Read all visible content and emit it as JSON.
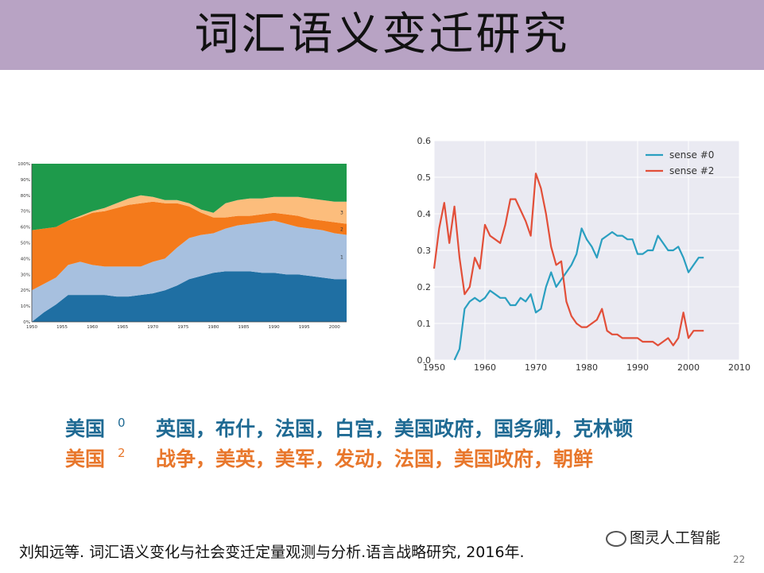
{
  "title": "词汇语义变迁研究",
  "chart_data": [
    {
      "type": "area",
      "stacked": true,
      "x": [
        1950,
        1952,
        1954,
        1956,
        1958,
        1960,
        1962,
        1964,
        1966,
        1968,
        1970,
        1972,
        1974,
        1976,
        1978,
        1980,
        1982,
        1984,
        1986,
        1988,
        1990,
        1992,
        1994,
        1996,
        1998,
        2000,
        2002
      ],
      "series": [
        {
          "name": "",
          "color": "#1f6fa3",
          "values": [
            0,
            0.06,
            0.11,
            0.17,
            0.17,
            0.17,
            0.17,
            0.16,
            0.16,
            0.17,
            0.18,
            0.2,
            0.23,
            0.27,
            0.29,
            0.31,
            0.32,
            0.32,
            0.32,
            0.31,
            0.31,
            0.3,
            0.3,
            0.29,
            0.28,
            0.27,
            0.27
          ]
        },
        {
          "name": "",
          "color": "#a7c0df",
          "values": [
            0.2,
            0.18,
            0.17,
            0.19,
            0.21,
            0.19,
            0.18,
            0.19,
            0.19,
            0.18,
            0.2,
            0.2,
            0.24,
            0.26,
            0.26,
            0.25,
            0.27,
            0.29,
            0.3,
            0.32,
            0.33,
            0.32,
            0.3,
            0.3,
            0.3,
            0.29,
            0.28
          ]
        },
        {
          "name": "",
          "color": "#f47a1b",
          "values": [
            0.38,
            0.35,
            0.32,
            0.28,
            0.28,
            0.33,
            0.35,
            0.37,
            0.39,
            0.4,
            0.38,
            0.35,
            0.28,
            0.2,
            0.14,
            0.1,
            0.07,
            0.06,
            0.05,
            0.05,
            0.05,
            0.06,
            0.07,
            0.06,
            0.06,
            0.07,
            0.07
          ]
        },
        {
          "name": "",
          "color": "#fcbd7c",
          "values": [
            0,
            0,
            0,
            0,
            0.01,
            0.01,
            0.02,
            0.03,
            0.04,
            0.05,
            0.03,
            0.02,
            0.02,
            0.02,
            0.02,
            0.03,
            0.09,
            0.1,
            0.11,
            0.1,
            0.1,
            0.11,
            0.12,
            0.13,
            0.13,
            0.13,
            0.14
          ]
        },
        {
          "name": "",
          "color": "#1e9a4b",
          "values": [
            0.42,
            0.41,
            0.4,
            0.36,
            0.33,
            0.3,
            0.28,
            0.25,
            0.22,
            0.2,
            0.21,
            0.23,
            0.23,
            0.25,
            0.29,
            0.31,
            0.25,
            0.23,
            0.22,
            0.22,
            0.21,
            0.21,
            0.21,
            0.22,
            0.23,
            0.24,
            0.24
          ]
        }
      ],
      "area_labels": [
        "1",
        "2",
        "3"
      ],
      "xlim": [
        1950,
        2002
      ],
      "ylim": [
        0,
        1
      ],
      "x_ticks": [
        "1950",
        "1955",
        "1960",
        "1965",
        "1970",
        "1975",
        "1980",
        "1985",
        "1990",
        "1995",
        "2000"
      ],
      "y_ticks": [
        "0%",
        "10%",
        "20%",
        "30%",
        "40%",
        "50%",
        "60%",
        "70%",
        "80%",
        "90%",
        "100%"
      ]
    },
    {
      "type": "line",
      "series": [
        {
          "name": "sense #0",
          "color": "#2a9fc0",
          "x": [
            1954,
            1955,
            1956,
            1957,
            1958,
            1959,
            1960,
            1961,
            1962,
            1963,
            1964,
            1965,
            1966,
            1967,
            1968,
            1969,
            1970,
            1971,
            1972,
            1973,
            1974,
            1975,
            1976,
            1977,
            1978,
            1979,
            1980,
            1981,
            1982,
            1983,
            1984,
            1985,
            1986,
            1987,
            1988,
            1989,
            1990,
            1991,
            1992,
            1993,
            1994,
            1995,
            1996,
            1997,
            1998,
            1999,
            2000,
            2001,
            2002,
            2003
          ],
          "y": [
            0,
            0.03,
            0.14,
            0.16,
            0.17,
            0.16,
            0.17,
            0.19,
            0.18,
            0.17,
            0.17,
            0.15,
            0.15,
            0.17,
            0.16,
            0.18,
            0.13,
            0.14,
            0.2,
            0.24,
            0.2,
            0.22,
            0.24,
            0.26,
            0.29,
            0.36,
            0.33,
            0.31,
            0.28,
            0.33,
            0.34,
            0.35,
            0.34,
            0.34,
            0.33,
            0.33,
            0.29,
            0.29,
            0.3,
            0.3,
            0.34,
            0.32,
            0.3,
            0.3,
            0.31,
            0.28,
            0.24,
            0.26,
            0.28,
            0.28
          ]
        },
        {
          "name": "sense #2",
          "color": "#e24f39",
          "x": [
            1950,
            1951,
            1952,
            1953,
            1954,
            1955,
            1956,
            1957,
            1958,
            1959,
            1960,
            1961,
            1962,
            1963,
            1964,
            1965,
            1966,
            1967,
            1968,
            1969,
            1970,
            1971,
            1972,
            1973,
            1974,
            1975,
            1976,
            1977,
            1978,
            1979,
            1980,
            1981,
            1982,
            1983,
            1984,
            1985,
            1986,
            1987,
            1988,
            1989,
            1990,
            1991,
            1992,
            1993,
            1994,
            1995,
            1996,
            1997,
            1998,
            1999,
            2000,
            2001,
            2002,
            2003
          ],
          "y": [
            0.25,
            0.36,
            0.43,
            0.32,
            0.42,
            0.28,
            0.18,
            0.2,
            0.28,
            0.25,
            0.37,
            0.34,
            0.33,
            0.32,
            0.37,
            0.44,
            0.44,
            0.41,
            0.38,
            0.34,
            0.51,
            0.47,
            0.4,
            0.31,
            0.26,
            0.27,
            0.16,
            0.12,
            0.1,
            0.09,
            0.09,
            0.1,
            0.11,
            0.14,
            0.08,
            0.07,
            0.07,
            0.06,
            0.06,
            0.06,
            0.06,
            0.05,
            0.05,
            0.05,
            0.04,
            0.05,
            0.06,
            0.04,
            0.06,
            0.13,
            0.06,
            0.08,
            0.08,
            0.08
          ]
        }
      ],
      "xlim": [
        1950,
        2010
      ],
      "ylim": [
        0,
        0.6
      ],
      "x_ticks": [
        "1950",
        "1960",
        "1970",
        "1980",
        "1990",
        "2000",
        "2010"
      ],
      "y_ticks": [
        "0.0",
        "0.1",
        "0.2",
        "0.3",
        "0.4",
        "0.5",
        "0.6"
      ],
      "legend": "top-right",
      "grid": true
    }
  ],
  "rows": [
    {
      "label": "美国",
      "sup": "0",
      "words": "英国，布什，法国，白宫，美国政府，国务卿，克林顿",
      "color": "#1f6a93"
    },
    {
      "label": "美国",
      "sup": "2",
      "words": "战争，美英，美军，发动，法国，美国政府，朝鲜",
      "color": "#e8772c"
    }
  ],
  "footer": "刘知远等. 词汇语义变化与社会变迁定量观测与分析.语言战略研究, 2016年.",
  "watermark": "图灵人工智能",
  "page_number": "22"
}
